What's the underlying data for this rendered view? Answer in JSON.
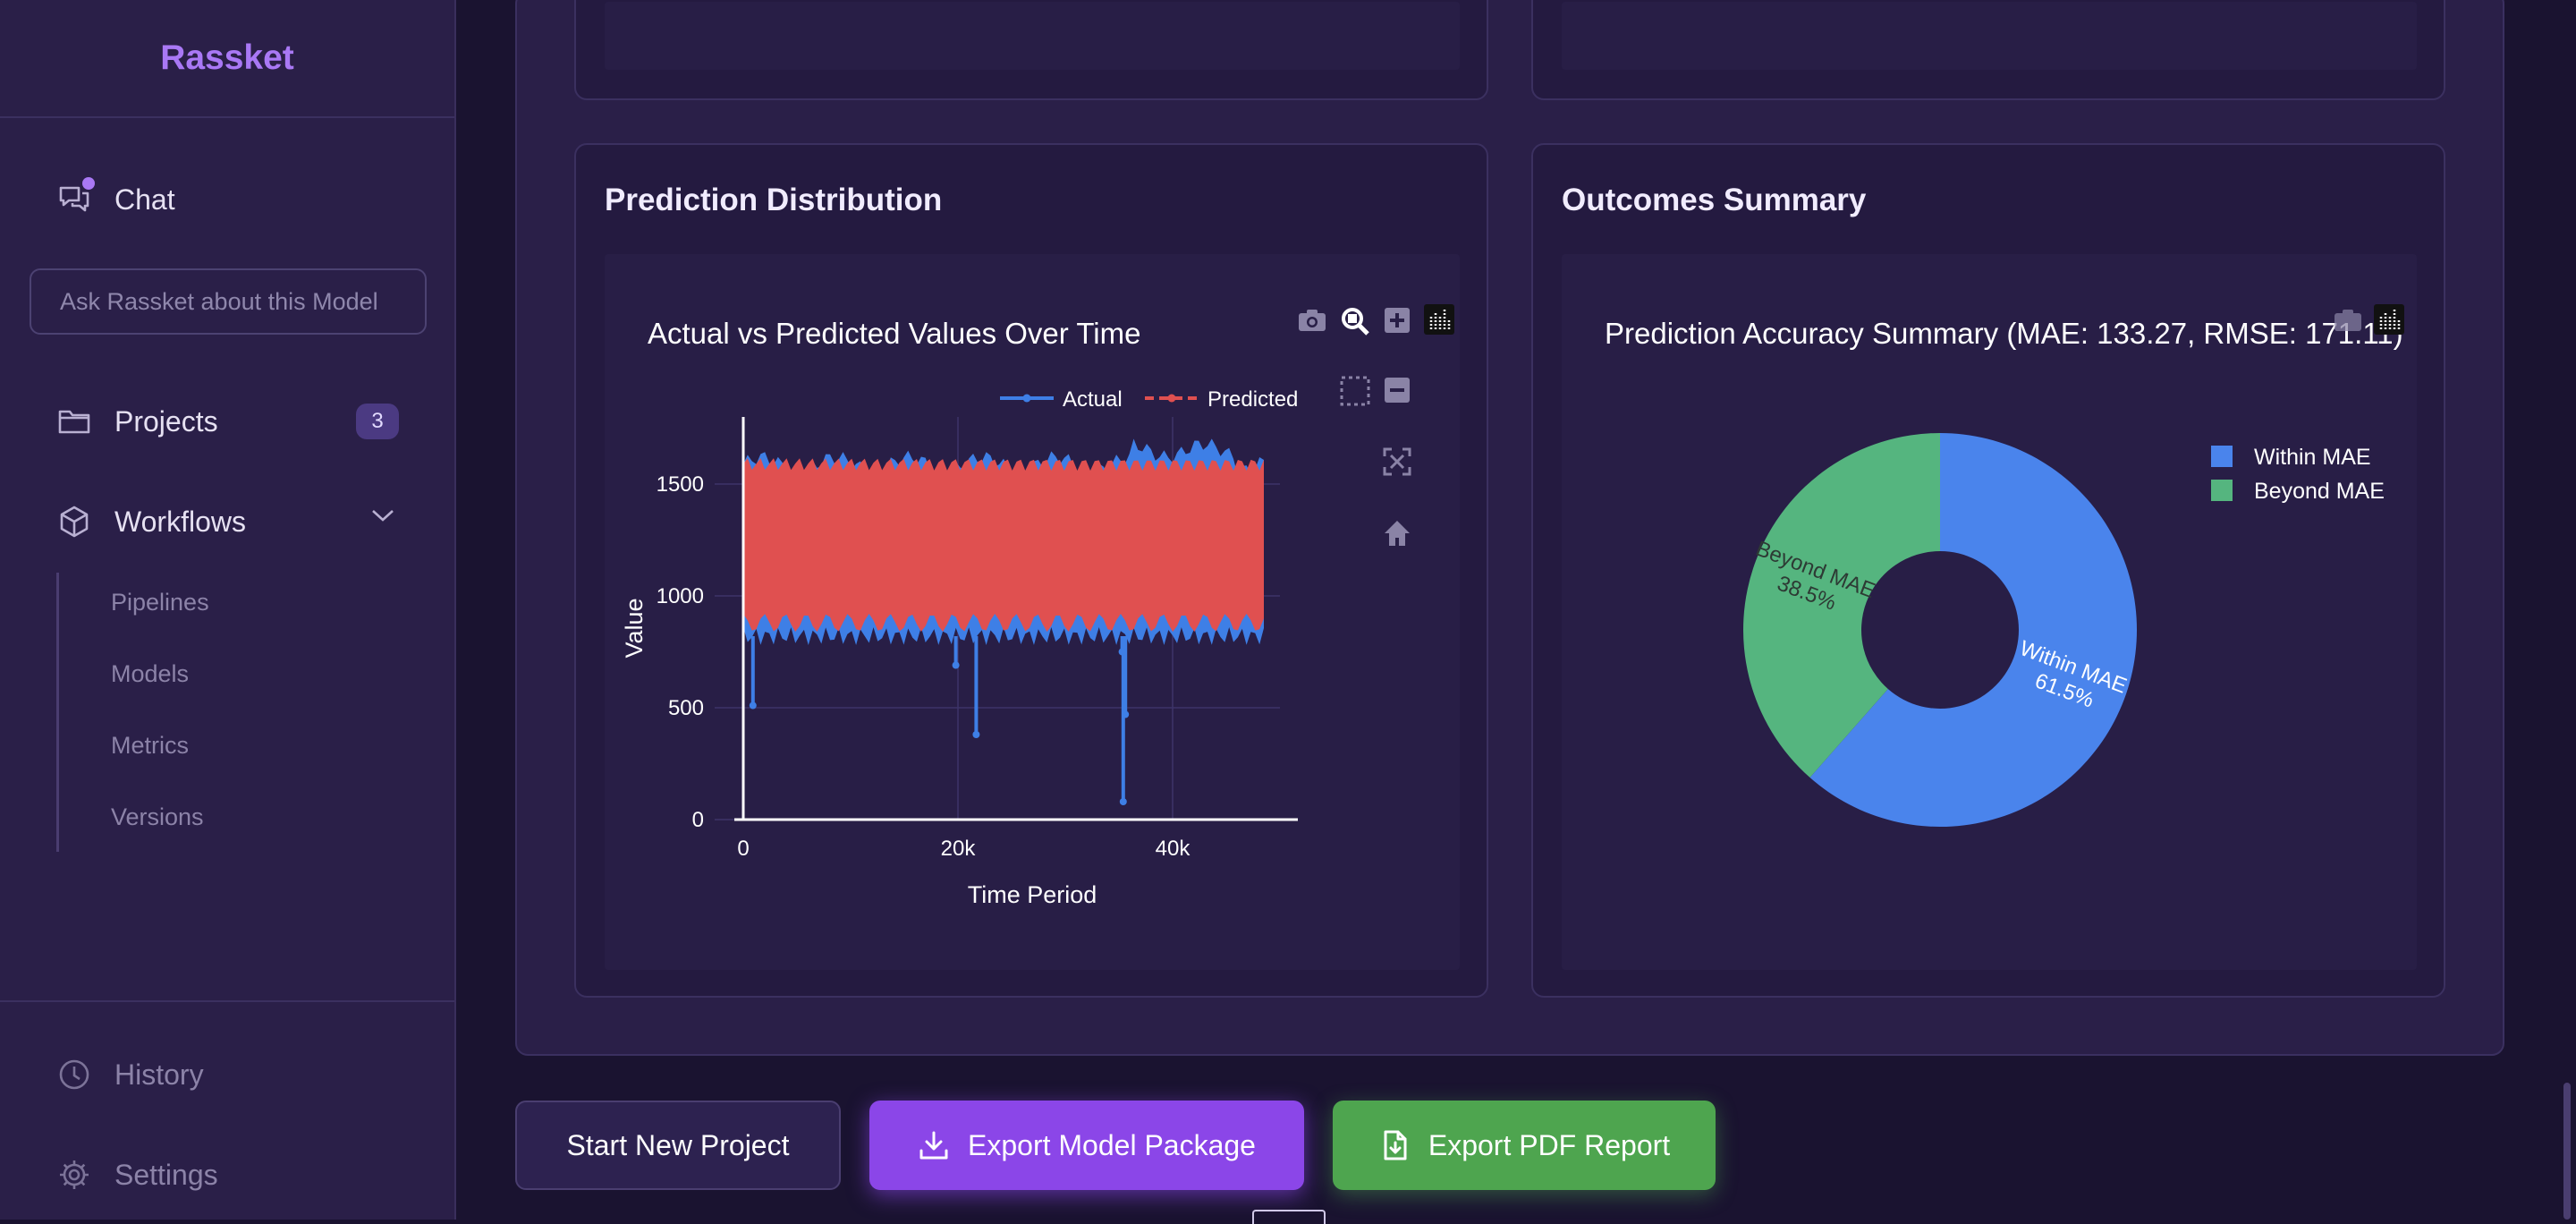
{
  "sidebar": {
    "brand": "Rassket",
    "chat_label": "Chat",
    "ask_placeholder": "Ask Rassket about this Model",
    "projects_label": "Projects",
    "projects_count": "3",
    "workflows_label": "Workflows",
    "workflow_items": [
      "Pipelines",
      "Models",
      "Metrics",
      "Versions"
    ],
    "history_label": "History",
    "settings_label": "Settings",
    "icons": [
      "chat-bubbles-icon",
      "folder-icon",
      "cube-icon",
      "chevron-down-icon",
      "clock-icon",
      "gear-icon"
    ]
  },
  "cards": {
    "prediction_title": "Prediction Distribution",
    "outcomes_title": "Outcomes Summary"
  },
  "actions": {
    "start_new": "Start New Project",
    "export_model": "Export Model Package",
    "export_pdf": "Export PDF Report"
  },
  "chart_data": [
    {
      "type": "line",
      "title": "Actual vs Predicted Values Over Time",
      "xlabel": "Time Period",
      "ylabel": "Value",
      "xlim": [
        0,
        50000
      ],
      "ylim": [
        0,
        1800
      ],
      "x_ticks": [
        {
          "v": 0,
          "label": "0"
        },
        {
          "v": 20000,
          "label": "20k"
        },
        {
          "v": 40000,
          "label": "40k"
        }
      ],
      "y_ticks": [
        {
          "v": 0,
          "label": "0"
        },
        {
          "v": 500,
          "label": "500"
        },
        {
          "v": 1000,
          "label": "1000"
        },
        {
          "v": 1500,
          "label": "1500"
        }
      ],
      "legend_position": "top-right",
      "series": [
        {
          "name": "Actual",
          "color": "#3e7fe6",
          "band_low": 840,
          "band_high": 1650,
          "x_end": 48500,
          "outliers": [
            {
              "x": 900,
              "y": 510
            },
            {
              "x": 21700,
              "y": 380
            },
            {
              "x": 35400,
              "y": 80
            },
            {
              "x": 35600,
              "y": 470
            },
            {
              "x": 35300,
              "y": 750
            },
            {
              "x": 19800,
              "y": 690
            }
          ]
        },
        {
          "name": "Predicted",
          "color": "#e05050",
          "band_low": 850,
          "band_high": 1620,
          "x_end": 48500
        }
      ],
      "modebar_icons": [
        "camera-icon",
        "zoom-icon",
        "zoom-in-icon",
        "plotly-logo-icon",
        "box-select-icon",
        "zoom-out-icon",
        "autoscale-icon",
        "home-icon"
      ]
    },
    {
      "type": "pie",
      "title": "Prediction Accuracy Summary (MAE: 133.27, RMSE: 171.11)",
      "hole": 0.4,
      "legend_position": "top-right",
      "slices": [
        {
          "label": "Within MAE",
          "value": 61.5,
          "display": "61.5%",
          "color": "#4a84ec"
        },
        {
          "label": "Beyond MAE",
          "value": 38.5,
          "display": "38.5%",
          "color": "#55b57f"
        }
      ]
    }
  ]
}
